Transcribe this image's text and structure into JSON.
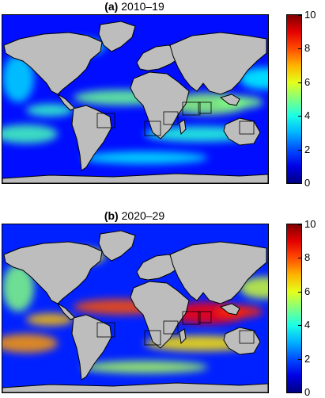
{
  "panels": [
    {
      "id": "a",
      "label": "(a)",
      "period": "2010–19",
      "intensity": 0.35
    },
    {
      "id": "b",
      "label": "(b)",
      "period": "2020–29",
      "intensity": 0.75
    }
  ],
  "colorbar": {
    "ticks": [
      "0",
      "2",
      "4",
      "6",
      "8",
      "10"
    ],
    "min": 0,
    "max": 10,
    "colormap": "jet"
  },
  "colors": {
    "land": "#bdbdbd",
    "ocean_base": "#0000a8",
    "coastline": "#000000"
  }
}
